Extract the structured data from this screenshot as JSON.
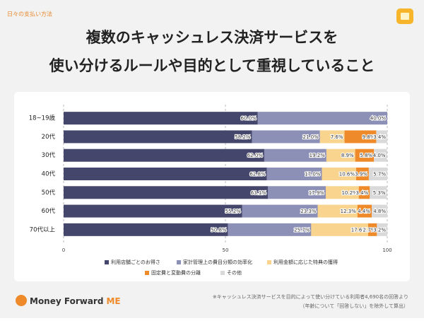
{
  "header": {
    "tag": "日々の支払い方法",
    "title_lines": [
      "複数のキャッシュレス決済サービスを",
      "使い分けるルールや目的として重視していること"
    ]
  },
  "chart_data": {
    "type": "stacked-bar-h",
    "categories": [
      "18~19歳",
      "20代",
      "30代",
      "40代",
      "50代",
      "60代",
      "70代以上"
    ],
    "series": [
      {
        "name": "利用店舗ごとのお得さ",
        "color": "#45466b",
        "values": [
          60.0,
          58.2,
          62.0,
          62.8,
          63.1,
          55.2,
          50.8
        ],
        "value_labels": [
          "60.0%",
          "58.2%",
          "62.0%",
          "62.8%",
          "63.1%",
          "55.2%",
          "50.8%"
        ]
      },
      {
        "name": "家計管理上の費目分類の効率化",
        "color": "#8c8fb6",
        "values": [
          40.0,
          21.0,
          19.2,
          17.0,
          17.9,
          23.3,
          25.7
        ],
        "value_labels": [
          "40.0%",
          "21.0%",
          "19.2%",
          "17.0%",
          "17.9%",
          "23.3%",
          "25.7%"
        ]
      },
      {
        "name": "利用金額に応じた特典の獲得",
        "color": "#f9d48e",
        "values": [
          null,
          7.6,
          8.9,
          10.6,
          10.2,
          12.3,
          17.6
        ],
        "value_labels": [
          null,
          "7.6%",
          "8.9%",
          "10.6%",
          "10.2%",
          "12.3%",
          "17.6%"
        ]
      },
      {
        "name": "固定費と変動費の分離",
        "color": "#ee8a2a",
        "values": [
          null,
          9.8,
          5.8,
          3.9,
          3.4,
          4.4,
          2.7
        ],
        "value_labels": [
          null,
          "9.8%",
          "5.8%",
          "3.9%",
          "3.4%",
          "4.4%",
          "2.7%"
        ]
      },
      {
        "name": "その他",
        "color": "#d9d9d9",
        "values": [
          null,
          3.4,
          4.0,
          5.7,
          5.3,
          4.8,
          3.2
        ],
        "value_labels": [
          null,
          "3.4%",
          "4.0%",
          "5.7%",
          "5.3%",
          "4.8%",
          "3.2%"
        ]
      }
    ],
    "xlim": [
      0,
      100
    ],
    "xticks": [
      0,
      50,
      100
    ],
    "grid": true
  },
  "footer": {
    "brand": "Money Forward",
    "brand_suffix": "ME",
    "notes": [
      "※キャッシュレス決済サービスを目的によって使い分けている利用者4,690名の回答より",
      "（年齢について「回答しない」を除外して算出）"
    ]
  }
}
